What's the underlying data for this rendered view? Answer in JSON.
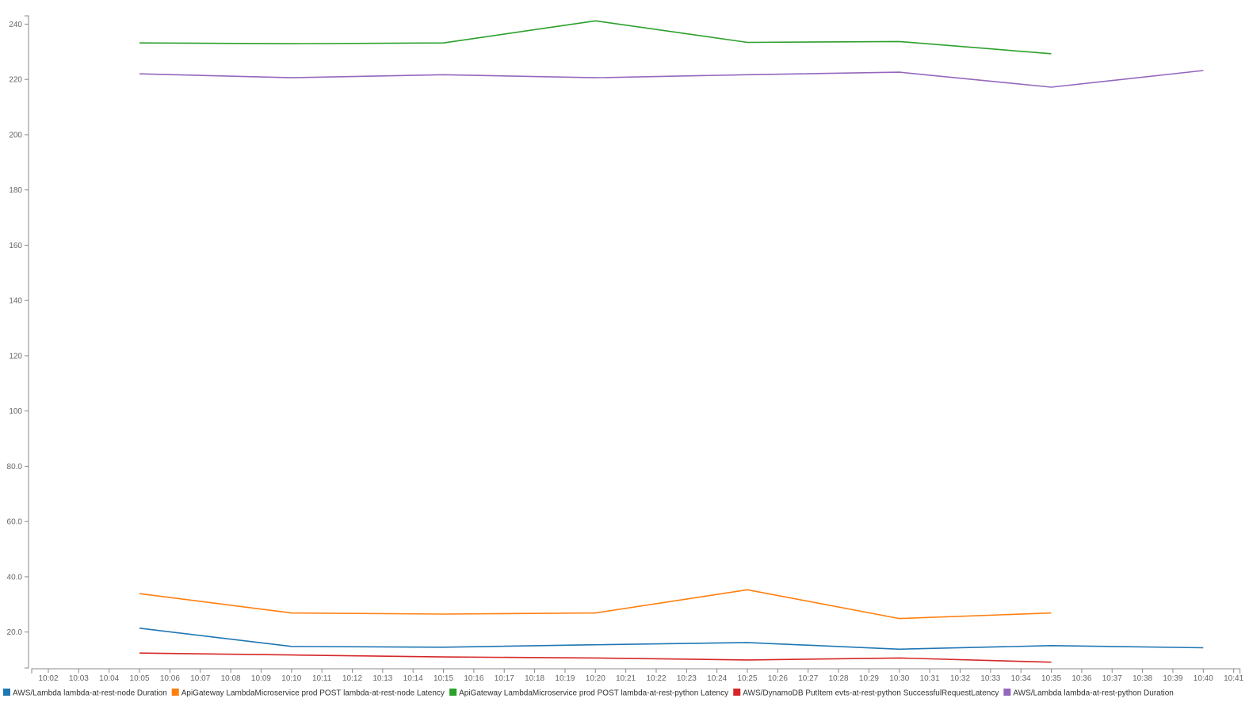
{
  "chart_data": {
    "type": "line",
    "title": "",
    "xlabel": "",
    "ylabel": "",
    "ylim": [
      7,
      243
    ],
    "grid": false,
    "legend_position": "bottom-left",
    "y_ticks": [
      20,
      40,
      60,
      80,
      100,
      120,
      140,
      160,
      180,
      200,
      220,
      240
    ],
    "y_tick_labels": [
      "20.0",
      "40.0",
      "60.0",
      "80.0",
      "100",
      "120",
      "140",
      "160",
      "180",
      "200",
      "220",
      "240"
    ],
    "x_ticks": [
      "10:02",
      "10:03",
      "10:04",
      "10:05",
      "10:06",
      "10:07",
      "10:08",
      "10:09",
      "10:10",
      "10:11",
      "10:12",
      "10:13",
      "10:14",
      "10:15",
      "10:16",
      "10:17",
      "10:18",
      "10:19",
      "10:20",
      "10:21",
      "10:22",
      "10:23",
      "10:24",
      "10:25",
      "10:26",
      "10:27",
      "10:28",
      "10:29",
      "10:30",
      "10:31",
      "10:32",
      "10:33",
      "10:34",
      "10:35",
      "10:36",
      "10:37",
      "10:38",
      "10:39",
      "10:40",
      "10:41"
    ],
    "series": [
      {
        "name": "AWS/Lambda lambda-at-rest-node Duration",
        "color": "#1f77b4",
        "x": [
          "10:05",
          "10:10",
          "10:15",
          "10:20",
          "10:25",
          "10:30",
          "10:35",
          "10:40"
        ],
        "values": [
          21.4,
          14.8,
          14.5,
          15.4,
          16.2,
          13.8,
          15.1,
          14.3
        ]
      },
      {
        "name": "ApiGateway LambdaMicroservice prod POST lambda-at-rest-node Latency",
        "color": "#ff7f0e",
        "x": [
          "10:05",
          "10:10",
          "10:15",
          "10:20",
          "10:25",
          "10:30",
          "10:35"
        ],
        "values": [
          33.9,
          26.9,
          26.5,
          26.9,
          35.3,
          24.9,
          26.9
        ]
      },
      {
        "name": "ApiGateway LambdaMicroservice prod POST lambda-at-rest-python Latency",
        "color": "#2ca02c",
        "x": [
          "10:05",
          "10:10",
          "10:15",
          "10:20",
          "10:25",
          "10:30",
          "10:35"
        ],
        "values": [
          233.2,
          232.9,
          233.2,
          241.2,
          233.4,
          233.7,
          229.3
        ]
      },
      {
        "name": "AWS/DynamoDB PutItem evts-at-rest-python SuccessfulRequestLatency",
        "color": "#d62728",
        "x": [
          "10:05",
          "10:10",
          "10:15",
          "10:20",
          "10:25",
          "10:30",
          "10:35"
        ],
        "values": [
          12.4,
          11.7,
          11.0,
          10.6,
          9.9,
          10.6,
          9.1
        ]
      },
      {
        "name": "AWS/Lambda lambda-at-rest-python Duration",
        "color": "#9467bd",
        "x": [
          "10:05",
          "10:10",
          "10:15",
          "10:20",
          "10:25",
          "10:30",
          "10:35",
          "10:40"
        ],
        "values": [
          222.0,
          220.6,
          221.7,
          220.6,
          221.7,
          222.6,
          217.2,
          223.2
        ]
      }
    ]
  }
}
